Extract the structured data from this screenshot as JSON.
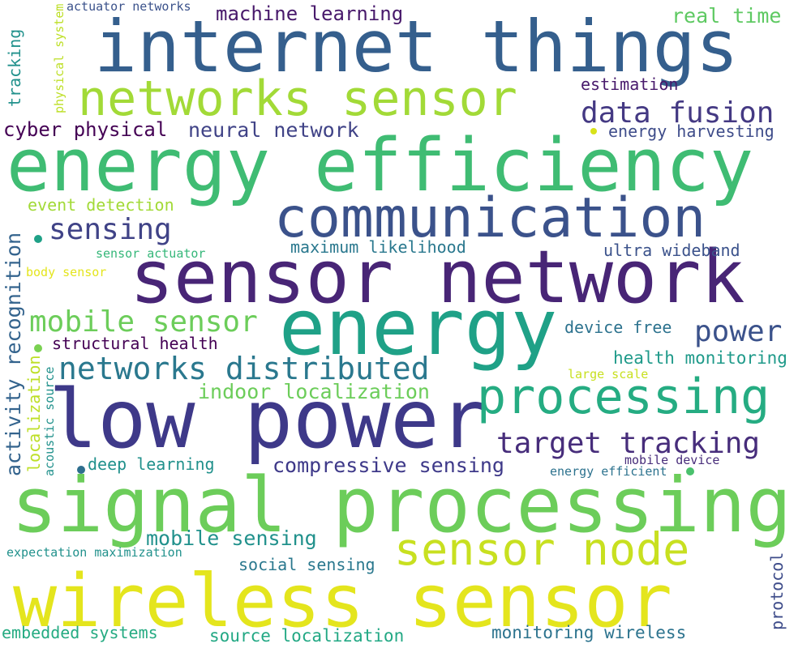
{
  "words": [
    {
      "text": "internet things",
      "color": "#355f8d"
    },
    {
      "text": "energy efficiency",
      "color": "#3fbc73"
    },
    {
      "text": "communication",
      "color": "#3b528b"
    },
    {
      "text": "sensor network",
      "color": "#482576"
    },
    {
      "text": "energy",
      "color": "#1fa187"
    },
    {
      "text": "low power",
      "color": "#3e3989"
    },
    {
      "text": "signal processing",
      "color": "#6ccd5a"
    },
    {
      "text": "wireless sensor",
      "color": "#e4e51d"
    },
    {
      "text": "networks sensor",
      "color": "#a2da37"
    },
    {
      "text": "processing",
      "color": "#25ac82"
    },
    {
      "text": "sensor node",
      "color": "#c8e020"
    },
    {
      "text": "networks distributed",
      "color": "#2a788e"
    },
    {
      "text": "data fusion",
      "color": "#443983"
    },
    {
      "text": "power",
      "color": "#3b528b"
    },
    {
      "text": "target tracking",
      "color": "#472d7b"
    },
    {
      "text": "mobile sensor",
      "color": "#6ccd5a"
    },
    {
      "text": "sensing",
      "color": "#404387"
    },
    {
      "text": "machine learning",
      "color": "#48196b"
    },
    {
      "text": "neural network",
      "color": "#404387"
    },
    {
      "text": "cyber physical",
      "color": "#440154"
    },
    {
      "text": "real time",
      "color": "#5ec962"
    },
    {
      "text": "estimation",
      "color": "#481a6c"
    },
    {
      "text": "energy harvesting",
      "color": "#3e4c8a"
    },
    {
      "text": "event detection",
      "color": "#a2da37"
    },
    {
      "text": "maximum likelihood",
      "color": "#2a788e"
    },
    {
      "text": "ultra wideband",
      "color": "#3b528b"
    },
    {
      "text": "sensor actuator",
      "color": "#35b779"
    },
    {
      "text": "body sensor",
      "color": "#e4e51d"
    },
    {
      "text": "structural health",
      "color": "#440154"
    },
    {
      "text": "device free",
      "color": "#2c728e"
    },
    {
      "text": "health monitoring",
      "color": "#1f9a8a"
    },
    {
      "text": "large scale",
      "color": "#c8e020"
    },
    {
      "text": "indoor localization",
      "color": "#6ccd5a"
    },
    {
      "text": "compressive sensing",
      "color": "#3e3989"
    },
    {
      "text": "deep learning",
      "color": "#21918c"
    },
    {
      "text": "mobile device",
      "color": "#472c7a"
    },
    {
      "text": "energy efficient",
      "color": "#2c728e"
    },
    {
      "text": "mobile sensing",
      "color": "#21918c"
    },
    {
      "text": "social sensing",
      "color": "#2a788e"
    },
    {
      "text": "expectation maximization",
      "color": "#21918c"
    },
    {
      "text": "embedded systems",
      "color": "#25ab82"
    },
    {
      "text": "source localization",
      "color": "#22a884"
    },
    {
      "text": "monitoring wireless",
      "color": "#2c738e"
    },
    {
      "text": "actuator networks",
      "color": "#3b528b"
    },
    {
      "text": "tracking",
      "color": "#21918c"
    },
    {
      "text": "physical system",
      "color": "#bddf26"
    },
    {
      "text": "activity recognition",
      "color": "#33638d"
    },
    {
      "text": "localization",
      "color": "#bddf26"
    },
    {
      "text": "acoustic source",
      "color": "#21918c"
    },
    {
      "text": "protocol",
      "color": "#3e4c8a"
    }
  ],
  "dots": [
    {
      "name": "dot-1",
      "color": "#7ad151"
    },
    {
      "name": "dot-2",
      "color": "#2e6e8e"
    },
    {
      "name": "dot-3",
      "color": "#1fa187"
    },
    {
      "name": "dot-4",
      "color": "#4ac16d"
    },
    {
      "name": "dot-5",
      "color": "#d8e219"
    }
  ]
}
